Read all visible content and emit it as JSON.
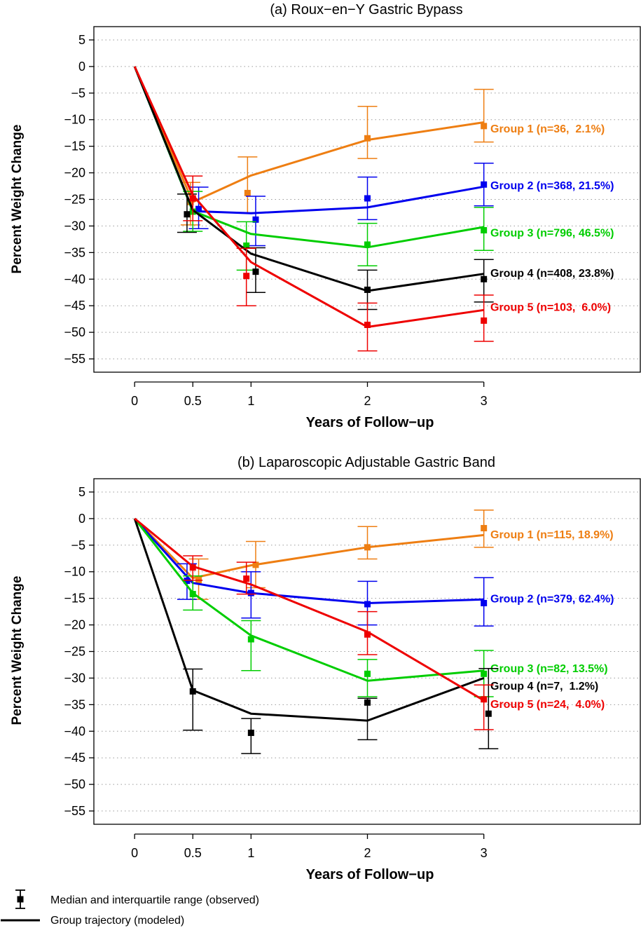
{
  "legend": {
    "observed_label": "Median and interquartile range (observed)",
    "modeled_label": "Group trajectory (modeled)"
  },
  "colors": {
    "Group 1": "#ee7e12",
    "Group 2": "#0000ee",
    "Group 3": "#00cd00",
    "Group 4": "#000000",
    "Group 5": "#ee0000"
  },
  "chart_data": [
    {
      "type": "line",
      "title": "(a) Roux−en−Y Gastric Bypass",
      "xlabel": "Years of Follow−up",
      "ylabel": "Percent Weight Change",
      "xticks": [
        0,
        0.5,
        1,
        2,
        3
      ],
      "xtick_labels": [
        "0",
        "0.5",
        "1",
        "2",
        "3"
      ],
      "yticks": [
        5,
        0,
        -5,
        -10,
        -15,
        -20,
        -25,
        -30,
        -35,
        -40,
        -45,
        -50,
        -55
      ],
      "ytick_labels": [
        "5",
        "0",
        "−5",
        "−10",
        "−15",
        "−20",
        "−25",
        "−30",
        "−35",
        "−40",
        "−45",
        "−50",
        "−55"
      ],
      "xlim": [
        -0.35,
        4.35
      ],
      "ylim": [
        -57.5,
        7.5
      ],
      "grid": "horizontal dotted",
      "series": [
        {
          "name": "Group 1",
          "label": "Group 1 (n=36,  2.1%)",
          "label_y": -11.6,
          "x": [
            0,
            0.5,
            1,
            2,
            3
          ],
          "modeled": [
            0,
            -25.5,
            -20.5,
            -13.8,
            -10.5
          ],
          "observed": [
            {
              "x": 0.48,
              "median": -25.5,
              "q1": -29.8,
              "q3": -21.8
            },
            {
              "x": 0.97,
              "median": -23.8,
              "q1": -27.5,
              "q3": -17.0
            },
            {
              "x": 2.0,
              "median": -13.5,
              "q1": -17.3,
              "q3": -7.5
            },
            {
              "x": 3.0,
              "median": -11.2,
              "q1": -14.2,
              "q3": -4.3
            }
          ]
        },
        {
          "name": "Group 2",
          "label": "Group 2 (n=368, 21.5%)",
          "label_y": -22.3,
          "x": [
            0,
            0.5,
            1,
            2,
            3
          ],
          "modeled": [
            0,
            -27.2,
            -27.6,
            -26.5,
            -22.6
          ],
          "observed": [
            {
              "x": 0.55,
              "median": -26.8,
              "q1": -30.5,
              "q3": -22.7
            },
            {
              "x": 1.04,
              "median": -28.8,
              "q1": -33.7,
              "q3": -24.4
            },
            {
              "x": 2.0,
              "median": -24.8,
              "q1": -28.8,
              "q3": -20.8
            },
            {
              "x": 3.0,
              "median": -22.2,
              "q1": -26.2,
              "q3": -18.2
            }
          ]
        },
        {
          "name": "Group 3",
          "label": "Group 3 (n=796, 46.5%)",
          "label_y": -31.2,
          "x": [
            0,
            0.5,
            1,
            2,
            3
          ],
          "modeled": [
            0,
            -27.2,
            -31.5,
            -34.0,
            -30.2
          ],
          "observed": [
            {
              "x": 0.5,
              "median": -27.3,
              "q1": -31.0,
              "q3": -23.5
            },
            {
              "x": 0.96,
              "median": -33.7,
              "q1": -38.3,
              "q3": -29.2
            },
            {
              "x": 2.0,
              "median": -33.5,
              "q1": -37.5,
              "q3": -29.5
            },
            {
              "x": 3.0,
              "median": -30.8,
              "q1": -34.6,
              "q3": -26.5
            }
          ]
        },
        {
          "name": "Group 4",
          "label": "Group 4 (n=408, 23.8%)",
          "label_y": -38.8,
          "x": [
            0,
            0.5,
            1,
            2,
            3
          ],
          "modeled": [
            0,
            -27.0,
            -35.2,
            -42.2,
            -39.0
          ],
          "observed": [
            {
              "x": 0.45,
              "median": -27.8,
              "q1": -31.2,
              "q3": -24.0
            },
            {
              "x": 1.04,
              "median": -38.6,
              "q1": -42.5,
              "q3": -34.1
            },
            {
              "x": 2.0,
              "median": -42.0,
              "q1": -45.7,
              "q3": -38.3
            },
            {
              "x": 3.0,
              "median": -40.0,
              "q1": -44.3,
              "q3": -36.3
            }
          ]
        },
        {
          "name": "Group 5",
          "label": "Group 5 (n=103,  6.0%)",
          "label_y": -45.2,
          "x": [
            0,
            0.5,
            1,
            2,
            3
          ],
          "modeled": [
            0,
            -24.2,
            -36.8,
            -49.0,
            -45.8
          ],
          "observed": [
            {
              "x": 0.5,
              "median": -24.8,
              "q1": -29.0,
              "q3": -20.6
            },
            {
              "x": 0.96,
              "median": -39.4,
              "q1": -45.0,
              "q3": -34.2
            },
            {
              "x": 2.0,
              "median": -48.6,
              "q1": -53.5,
              "q3": -44.5
            },
            {
              "x": 3.0,
              "median": -47.8,
              "q1": -51.7,
              "q3": -43.0
            }
          ]
        }
      ]
    },
    {
      "type": "line",
      "title": "(b) Laparoscopic Adjustable Gastric Band",
      "xlabel": "Years of Follow−up",
      "ylabel": "Percent Weight Change",
      "xticks": [
        0,
        0.5,
        1,
        2,
        3
      ],
      "xtick_labels": [
        "0",
        "0.5",
        "1",
        "2",
        "3"
      ],
      "yticks": [
        5,
        0,
        -5,
        -10,
        -15,
        -20,
        -25,
        -30,
        -35,
        -40,
        -45,
        -50,
        -55
      ],
      "ytick_labels": [
        "5",
        "0",
        "−5",
        "−10",
        "−15",
        "−20",
        "−25",
        "−30",
        "−35",
        "−40",
        "−45",
        "−50",
        "−55"
      ],
      "xlim": [
        -0.35,
        4.35
      ],
      "ylim": [
        -57.5,
        7.5
      ],
      "grid": "horizontal dotted",
      "series": [
        {
          "name": "Group 1",
          "label": "Group 1 (n=115, 18.9%)",
          "label_y": -2.9,
          "x": [
            0,
            0.5,
            1,
            2,
            3
          ],
          "modeled": [
            0,
            -11.2,
            -8.8,
            -5.4,
            -3.1
          ],
          "observed": [
            {
              "x": 0.55,
              "median": -11.6,
              "q1": -15.2,
              "q3": -7.6
            },
            {
              "x": 1.04,
              "median": -8.7,
              "q1": -13.0,
              "q3": -4.3
            },
            {
              "x": 2.0,
              "median": -5.4,
              "q1": -7.6,
              "q3": -1.5
            },
            {
              "x": 3.0,
              "median": -1.8,
              "q1": -5.4,
              "q3": 1.6
            }
          ]
        },
        {
          "name": "Group 2",
          "label": "Group 2 (n=379, 62.4%)",
          "label_y": -15.0,
          "x": [
            0,
            0.5,
            1,
            2,
            3
          ],
          "modeled": [
            0,
            -12.1,
            -14.0,
            -15.9,
            -15.2
          ],
          "observed": [
            {
              "x": 0.45,
              "median": -11.7,
              "q1": -15.2,
              "q3": -8.5
            },
            {
              "x": 1.0,
              "median": -14.0,
              "q1": -18.7,
              "q3": -10.0
            },
            {
              "x": 2.0,
              "median": -16.1,
              "q1": -20.0,
              "q3": -11.8
            },
            {
              "x": 3.0,
              "median": -15.9,
              "q1": -20.2,
              "q3": -11.1
            }
          ]
        },
        {
          "name": "Group 3",
          "label": "Group 3 (n=82, 13.5%)",
          "label_y": -28.1,
          "x": [
            0,
            0.5,
            1,
            2,
            3
          ],
          "modeled": [
            0,
            -14.0,
            -22.0,
            -30.5,
            -28.6
          ],
          "observed": [
            {
              "x": 0.5,
              "median": -14.2,
              "q1": -17.2,
              "q3": -10.8
            },
            {
              "x": 1.0,
              "median": -22.7,
              "q1": -28.6,
              "q3": -19.2
            },
            {
              "x": 2.0,
              "median": -29.2,
              "q1": -33.5,
              "q3": -26.5
            },
            {
              "x": 3.0,
              "median": -29.2,
              "q1": -33.5,
              "q3": -24.8
            }
          ]
        },
        {
          "name": "Group 4",
          "label": "Group 4 (n=7,  1.2%)",
          "label_y": -31.4,
          "x": [
            0,
            0.5,
            1,
            2,
            3
          ],
          "modeled": [
            0,
            -32.3,
            -36.7,
            -38.0,
            -30.0
          ],
          "observed": [
            {
              "x": 0.5,
              "median": -32.5,
              "q1": -39.8,
              "q3": -28.3
            },
            {
              "x": 1.0,
              "median": -40.3,
              "q1": -44.2,
              "q3": -37.6
            },
            {
              "x": 2.0,
              "median": -34.6,
              "q1": -41.6,
              "q3": -33.8
            },
            {
              "x": 3.04,
              "median": -36.7,
              "q1": -43.3,
              "q3": -28.2
            }
          ]
        },
        {
          "name": "Group 5",
          "label": "Group 5 (n=24,  4.0%)",
          "label_y": -34.8,
          "x": [
            0,
            0.5,
            1,
            2,
            3
          ],
          "modeled": [
            0,
            -9.0,
            -12.4,
            -21.3,
            -34.2
          ],
          "observed": [
            {
              "x": 0.5,
              "median": -9.2,
              "q1": -11.6,
              "q3": -7.0
            },
            {
              "x": 0.96,
              "median": -11.3,
              "q1": -14.2,
              "q3": -8.2
            },
            {
              "x": 2.0,
              "median": -21.8,
              "q1": -25.6,
              "q3": -17.5
            },
            {
              "x": 3.0,
              "median": -34.0,
              "q1": -39.7,
              "q3": -31.3
            }
          ]
        }
      ]
    }
  ]
}
